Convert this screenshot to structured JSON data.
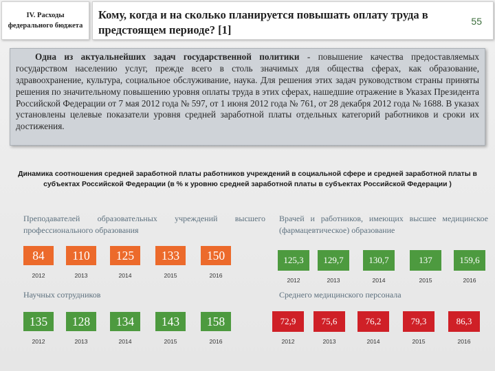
{
  "header": {
    "section": "IV. Расходы федерального бюджета",
    "title": "Кому, когда и на сколько планируется повышать оплату труда в предстоящем периоде? [1]",
    "page_number": "55"
  },
  "intro": {
    "lead": "Одна из актуальнейших задач государственной политики",
    "body": " - повышение качества предоставляемых государством населению услуг, прежде всего в столь значимых для общества сферах, как образование, здравоохранение, культура, социальное обслуживание, наука. Для решения этих задач руководством страны приняты решения по значительному повышению уровня оплаты труда в этих сферах, нашедшие отражение в Указах Президента Российской Федерации от 7 мая 2012 года № 597, от 1 июня 2012 года № 761, от 28 декабря 2012 года № 1688. В указах установлены целевые показатели уровня средней заработной платы отдельных категорий работников и сроки их достижения."
  },
  "chart_title": "Динамика соотношения средней заработной платы работников учреждений в социальной сфере и средней заработной платы в субъектах Российской Федерации (в % к уровню средней заработной платы в субъектах Российской Федерации )",
  "colors": {
    "orange": "#ec6a2b",
    "green": "#4d9a3f",
    "red": "#cf2027",
    "label": "#5b6f7d"
  },
  "chart_data": {
    "type": "table",
    "groups": [
      {
        "name": "Преподавателей образовательных учреждений высшего профессионального образования",
        "years": [
          "2012",
          "2013",
          "2014",
          "2015",
          "2016"
        ],
        "values": [
          "84",
          "110",
          "125",
          "133",
          "150"
        ],
        "color": "orange"
      },
      {
        "name": "Врачей и работников, имеющих высшее медицинское (фармацевтическое) образование",
        "years": [
          "2012",
          "2013",
          "2014",
          "2015",
          "2016"
        ],
        "values": [
          "125,3",
          "129,7",
          "130,7",
          "137",
          "159,6"
        ],
        "color": "green"
      },
      {
        "name": "Научных сотрудников",
        "years": [
          "2012",
          "2013",
          "2014",
          "2015",
          "2016"
        ],
        "values": [
          "135",
          "128",
          "134",
          "143",
          "158"
        ],
        "color": "green"
      },
      {
        "name": "Среднего медицинского персонала",
        "years": [
          "2012",
          "2013",
          "2014",
          "2015",
          "2016"
        ],
        "values": [
          "72,9",
          "75,6",
          "76,2",
          "79,3",
          "86,3"
        ],
        "color": "red"
      }
    ]
  }
}
